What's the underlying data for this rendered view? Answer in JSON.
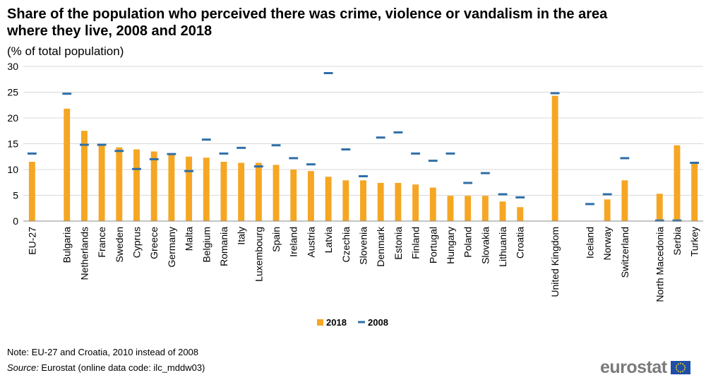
{
  "header": {
    "title": "Share of the population who perceived there was crime, violence or vandalism in the area where they live, 2008 and 2018",
    "subtitle": "(% of total population)"
  },
  "footer": {
    "note": "Note: EU-27 and Croatia, 2010 instead of 2008",
    "source_label": "Source:",
    "source_text": " Eurostat (online data code: ilc_mddw03)",
    "logo_text": "eurostat"
  },
  "colors": {
    "bar_2018": "#f5a623",
    "marker_2008": "#2e6fa8",
    "grid": "#d9d9d9",
    "axis": "#888888"
  },
  "chart_data": {
    "type": "bar",
    "title": "Share of the population who perceived there was crime, violence or vandalism in the area where they live, 2008 and 2018",
    "subtitle": "(% of total population)",
    "ylim": [
      0,
      30
    ],
    "yticks": [
      0,
      5,
      10,
      15,
      20,
      25,
      30
    ],
    "grid": true,
    "legend_position": "bottom-center",
    "categories": [
      "EU-27",
      "",
      "Bulgaria",
      "Netherlands",
      "France",
      "Sweden",
      "Cyprus",
      "Greece",
      "Germany",
      "Malta",
      "Belgium",
      "Romania",
      "Italy",
      "Luxembourg",
      "Spain",
      "Ireland",
      "Austria",
      "Latvia",
      "Czechia",
      "Slovenia",
      "Denmark",
      "Estonia",
      "Finland",
      "Portugal",
      "Hungary",
      "Poland",
      "Slovakia",
      "Lithuania",
      "Croatia",
      "",
      "United Kingdom",
      "",
      "Iceland",
      "Norway",
      "Switzerland",
      "",
      "North Macedonia",
      "Serbia",
      "Turkey"
    ],
    "series": [
      {
        "name": "2018",
        "kind": "bar",
        "values": [
          11.5,
          null,
          21.8,
          17.5,
          14.8,
          14.3,
          13.9,
          13.5,
          13.0,
          12.5,
          12.3,
          11.5,
          11.3,
          11.3,
          10.9,
          10.0,
          9.7,
          8.6,
          7.9,
          7.9,
          7.4,
          7.4,
          7.1,
          6.5,
          4.9,
          4.9,
          4.9,
          3.8,
          2.7,
          null,
          24.3,
          null,
          null,
          4.2,
          7.9,
          null,
          5.3,
          14.7,
          11.1
        ]
      },
      {
        "name": "2008",
        "kind": "marker",
        "values": [
          13.1,
          null,
          24.7,
          14.8,
          14.8,
          13.6,
          10.1,
          12.0,
          13.0,
          9.7,
          15.8,
          13.1,
          14.2,
          10.6,
          14.7,
          12.2,
          11.0,
          28.7,
          13.9,
          8.7,
          16.2,
          17.2,
          13.1,
          11.7,
          13.1,
          7.4,
          9.3,
          5.2,
          4.6,
          null,
          24.8,
          null,
          3.3,
          5.2,
          12.2,
          null,
          0.1,
          0.1,
          11.3
        ]
      }
    ]
  }
}
